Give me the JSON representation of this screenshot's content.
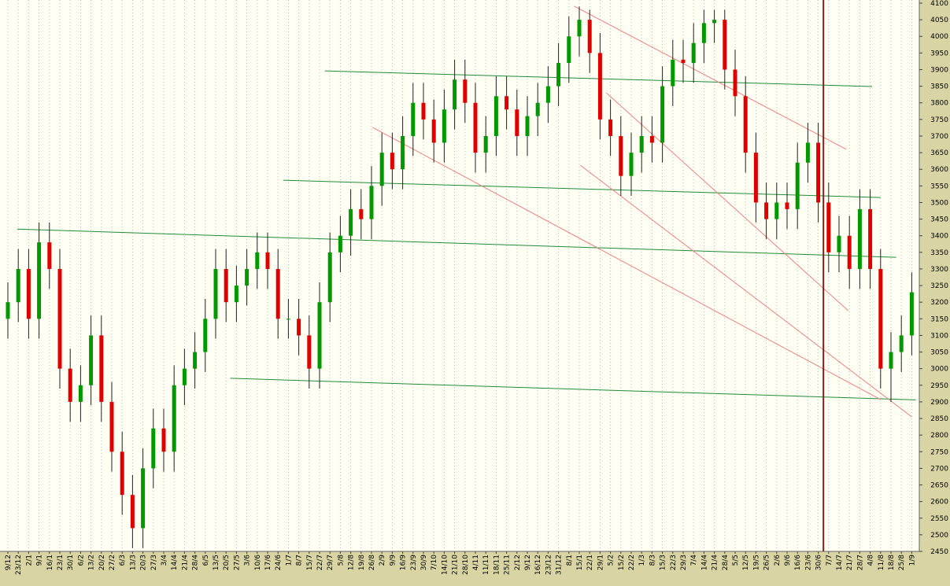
{
  "chart_data": {
    "type": "candlestick",
    "categories": [
      "9/12",
      "23/12",
      "2/1",
      "9/1",
      "16/1",
      "23/1",
      "30/1",
      "6/2",
      "13/2",
      "20/2",
      "27/2",
      "6/3",
      "13/3",
      "20/3",
      "27/3",
      "3/4",
      "14/4",
      "21/4",
      "28/4",
      "6/5",
      "13/5",
      "20/5",
      "27/5",
      "3/6",
      "10/6",
      "17/6",
      "24/6",
      "1/7",
      "8/7",
      "15/7",
      "22/7",
      "29/7",
      "5/8",
      "12/8",
      "19/8",
      "26/8",
      "2/9",
      "9/9",
      "16/9",
      "23/9",
      "30/9",
      "7/10",
      "14/10",
      "21/10",
      "28/10",
      "4/11",
      "11/11",
      "18/11",
      "25/11",
      "2/12",
      "9/12",
      "16/12",
      "23/12",
      "31/12",
      "8/1",
      "15/1",
      "22/1",
      "29/1",
      "5/2",
      "15/2",
      "22/2",
      "1/3",
      "8/3",
      "15/3",
      "22/3",
      "29/3",
      "7/4",
      "14/4",
      "21/4",
      "28/4",
      "5/5",
      "12/5",
      "19/5",
      "26/5",
      "2/6",
      "9/6",
      "16/6",
      "23/6",
      "30/6",
      "7/7",
      "14/7",
      "21/7",
      "28/7",
      "4/8",
      "11/8",
      "18/8",
      "25/8",
      "1/9"
    ],
    "open": [
      3150,
      3200,
      3300,
      3150,
      3380,
      3300,
      3000,
      2900,
      2950,
      3100,
      2900,
      2750,
      2620,
      2520,
      2700,
      2820,
      2750,
      2950,
      3000,
      3050,
      3150,
      3300,
      3200,
      3250,
      3300,
      3350,
      3300,
      3150,
      3150,
      3100,
      3000,
      3200,
      3350,
      3400,
      3480,
      3450,
      3550,
      3650,
      3600,
      3700,
      3800,
      3750,
      3680,
      3780,
      3870,
      3800,
      3650,
      3700,
      3820,
      3780,
      3700,
      3760,
      3800,
      3850,
      3920,
      4000,
      4050,
      3950,
      3750,
      3700,
      3580,
      3650,
      3700,
      3680,
      3850,
      3930,
      3920,
      3980,
      4040,
      4050,
      3900,
      3820,
      3650,
      3500,
      3450,
      3500,
      3480,
      3620,
      3680,
      3500,
      3350,
      3400,
      3300,
      3480,
      3300,
      3000,
      3050,
      3100
    ],
    "high": [
      3260,
      3360,
      3360,
      3440,
      3440,
      3360,
      3060,
      3010,
      3160,
      3160,
      2960,
      2810,
      2680,
      2760,
      2880,
      2880,
      3010,
      3060,
      3110,
      3210,
      3360,
      3360,
      3310,
      3360,
      3410,
      3410,
      3360,
      3210,
      3210,
      3160,
      3260,
      3410,
      3460,
      3540,
      3540,
      3610,
      3710,
      3710,
      3760,
      3860,
      3860,
      3810,
      3840,
      3930,
      3930,
      3860,
      3760,
      3880,
      3880,
      3840,
      3820,
      3860,
      3910,
      3980,
      4060,
      4090,
      4080,
      4010,
      3810,
      3760,
      3710,
      3760,
      3760,
      3910,
      3990,
      3990,
      4040,
      4080,
      4080,
      4080,
      3960,
      3880,
      3710,
      3560,
      3560,
      3560,
      3680,
      3740,
      3740,
      3560,
      3460,
      3460,
      3540,
      3540,
      3360,
      3110,
      3160,
      3290
    ],
    "low": [
      3090,
      3140,
      3090,
      3090,
      3240,
      2940,
      2840,
      2840,
      2890,
      2840,
      2690,
      2560,
      2460,
      2460,
      2640,
      2690,
      2690,
      2890,
      2940,
      2990,
      3090,
      3140,
      3140,
      3190,
      3240,
      3240,
      3090,
      3090,
      3040,
      2940,
      2940,
      3140,
      3290,
      3340,
      3390,
      3390,
      3490,
      3540,
      3540,
      3640,
      3690,
      3620,
      3620,
      3720,
      3740,
      3590,
      3590,
      3640,
      3720,
      3640,
      3640,
      3700,
      3740,
      3790,
      3860,
      3940,
      3890,
      3690,
      3640,
      3520,
      3520,
      3590,
      3620,
      3620,
      3790,
      3860,
      3860,
      3920,
      3980,
      3840,
      3760,
      3590,
      3440,
      3390,
      3390,
      3420,
      3420,
      3560,
      3440,
      3290,
      3290,
      3240,
      3240,
      3240,
      2940,
      2900,
      2990,
      3040
    ],
    "close": [
      3200,
      3300,
      3150,
      3380,
      3300,
      3000,
      2900,
      2950,
      3100,
      2900,
      2750,
      2620,
      2520,
      2700,
      2820,
      2750,
      2950,
      3000,
      3050,
      3150,
      3300,
      3200,
      3250,
      3300,
      3350,
      3300,
      3150,
      3150,
      3100,
      3000,
      3200,
      3350,
      3400,
      3480,
      3450,
      3550,
      3650,
      3600,
      3700,
      3800,
      3750,
      3680,
      3780,
      3870,
      3800,
      3650,
      3700,
      3820,
      3780,
      3700,
      3760,
      3800,
      3850,
      3920,
      4000,
      4050,
      3950,
      3750,
      3700,
      3580,
      3650,
      3700,
      3680,
      3850,
      3930,
      3920,
      3980,
      4040,
      4050,
      3900,
      3820,
      3650,
      3500,
      3450,
      3500,
      3480,
      3620,
      3680,
      3500,
      3350,
      3400,
      3300,
      3480,
      3300,
      3000,
      3050,
      3100,
      3230
    ],
    "up_color": "#009a00",
    "down_color": "#e00000",
    "ylim": [
      2450,
      4100
    ],
    "yticks": [
      2450,
      2500,
      2550,
      2600,
      2650,
      2700,
      2750,
      2800,
      2850,
      2900,
      2950,
      3000,
      3050,
      3100,
      3150,
      3200,
      3250,
      3300,
      3350,
      3400,
      3450,
      3500,
      3550,
      3600,
      3650,
      3700,
      3750,
      3800,
      3850,
      3900,
      3950,
      4000,
      4050,
      4100
    ],
    "grid": true,
    "trendlines": [
      {
        "color": "#1e8c3a",
        "x": [
          0.9,
          85.5
        ],
        "y": [
          3420,
          3335
        ]
      },
      {
        "color": "#1e8c3a",
        "x": [
          26.5,
          84
        ],
        "y": [
          3567,
          3515
        ]
      },
      {
        "color": "#1e8c3a",
        "x": [
          30.5,
          83.2
        ],
        "y": [
          3896,
          3849
        ]
      },
      {
        "color": "#1e8c3a",
        "x": [
          21.4,
          87.4
        ],
        "y": [
          2971,
          2906
        ]
      },
      {
        "color": "#f08080",
        "x": [
          54.5,
          80.7
        ],
        "y": [
          4091,
          3660
        ]
      },
      {
        "color": "#f08080",
        "x": [
          57.6,
          80.9
        ],
        "y": [
          3830,
          3174
        ]
      },
      {
        "color": "#f08080",
        "x": [
          55.1,
          87
        ],
        "y": [
          3612,
          2855
        ]
      },
      {
        "color": "#f08080",
        "x": [
          35.1,
          84
        ],
        "y": [
          3726,
          2907
        ]
      }
    ],
    "vlines": [
      {
        "x": 78.5,
        "color": "#7a2020"
      }
    ]
  }
}
